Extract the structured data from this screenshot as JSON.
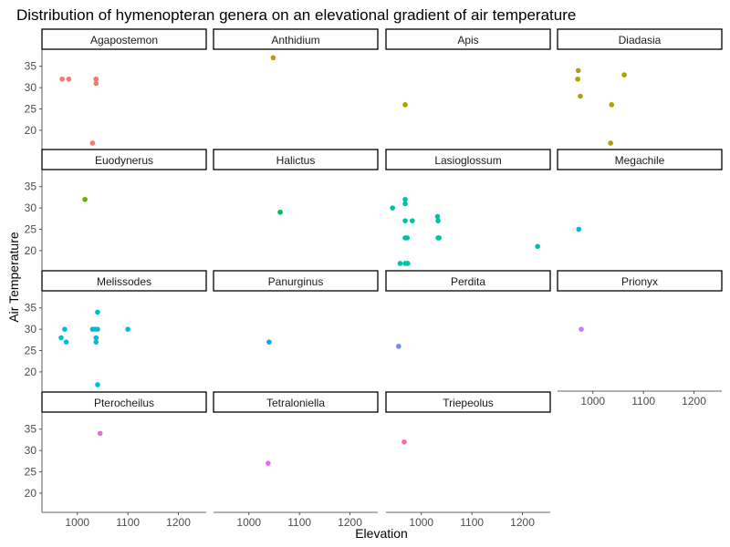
{
  "chart_data": {
    "type": "scatter",
    "title": "Distribution of hymenopteran genera on an elevational gradient of air temperature",
    "xlabel": "Elevation",
    "ylabel": "Air Temperature",
    "xlim": [
      930,
      1255
    ],
    "ylim": [
      15.5,
      39
    ],
    "x_ticks": [
      1000,
      1100,
      1200
    ],
    "y_ticks": [
      20,
      25,
      30,
      35
    ],
    "grid": false,
    "legend": "none",
    "facet_columns": 4,
    "panels": [
      {
        "name": "Agapostemon",
        "color": "#F8766D",
        "points": [
          [
            970,
            32
          ],
          [
            983,
            32
          ],
          [
            1037,
            32
          ],
          [
            1037,
            31
          ],
          [
            1030,
            17
          ]
        ]
      },
      {
        "name": "Anthidium",
        "color": "#DB8E00",
        "points": [
          [
            1048,
            37
          ]
        ]
      },
      {
        "name": "Apis",
        "color": "#AEA200",
        "points": [
          [
            968,
            26
          ]
        ]
      },
      {
        "name": "Diadasia",
        "color": "#AEA200",
        "points": [
          [
            971,
            34
          ],
          [
            970,
            32
          ],
          [
            975,
            28
          ],
          [
            1062,
            33
          ],
          [
            1037,
            26
          ],
          [
            1035,
            17
          ]
        ]
      },
      {
        "name": "Euodynerus",
        "color": "#64B200",
        "points": [
          [
            1015,
            32
          ]
        ]
      },
      {
        "name": "Halictus",
        "color": "#00BD5C",
        "points": [
          [
            1062,
            29
          ],
          [
            1062,
            29
          ]
        ]
      },
      {
        "name": "Lasioglossum",
        "color": "#00C1A7",
        "points": [
          [
            943,
            30
          ],
          [
            968,
            32
          ],
          [
            968,
            31
          ],
          [
            968,
            27
          ],
          [
            982,
            27
          ],
          [
            968,
            23
          ],
          [
            972,
            23
          ],
          [
            1032,
            28
          ],
          [
            1033,
            27
          ],
          [
            1033,
            23
          ],
          [
            1035,
            23
          ],
          [
            1230,
            21
          ],
          [
            958,
            17
          ],
          [
            968,
            17
          ],
          [
            973,
            17
          ]
        ]
      },
      {
        "name": "Megachile",
        "color": "#00BADE",
        "points": [
          [
            972,
            25
          ]
        ]
      },
      {
        "name": "Melissodes",
        "color": "#00BADE",
        "points": [
          [
            968,
            28
          ],
          [
            975,
            30
          ],
          [
            978,
            27
          ],
          [
            1030,
            30
          ],
          [
            1035,
            30
          ],
          [
            1040,
            30
          ],
          [
            1040,
            34
          ],
          [
            1037,
            28
          ],
          [
            1037,
            27
          ],
          [
            1100,
            30
          ],
          [
            1040,
            17
          ]
        ]
      },
      {
        "name": "Panurginus",
        "color": "#00A6FF",
        "points": [
          [
            1040,
            27
          ]
        ]
      },
      {
        "name": "Perdita",
        "color": "#6E8CFF",
        "points": [
          [
            955,
            26
          ]
        ]
      },
      {
        "name": "Prionyx",
        "color": "#C77CFF",
        "points": [
          [
            977,
            30
          ]
        ]
      },
      {
        "name": "Pterocheilus",
        "color": "#EF67EB",
        "points": [
          [
            1045,
            34
          ]
        ]
      },
      {
        "name": "Tetraloniella",
        "color": "#EF67EB",
        "points": [
          [
            1038,
            27
          ]
        ]
      },
      {
        "name": "Triepeolus",
        "color": "#FF63B6",
        "points": [
          [
            966,
            32
          ]
        ]
      }
    ]
  }
}
